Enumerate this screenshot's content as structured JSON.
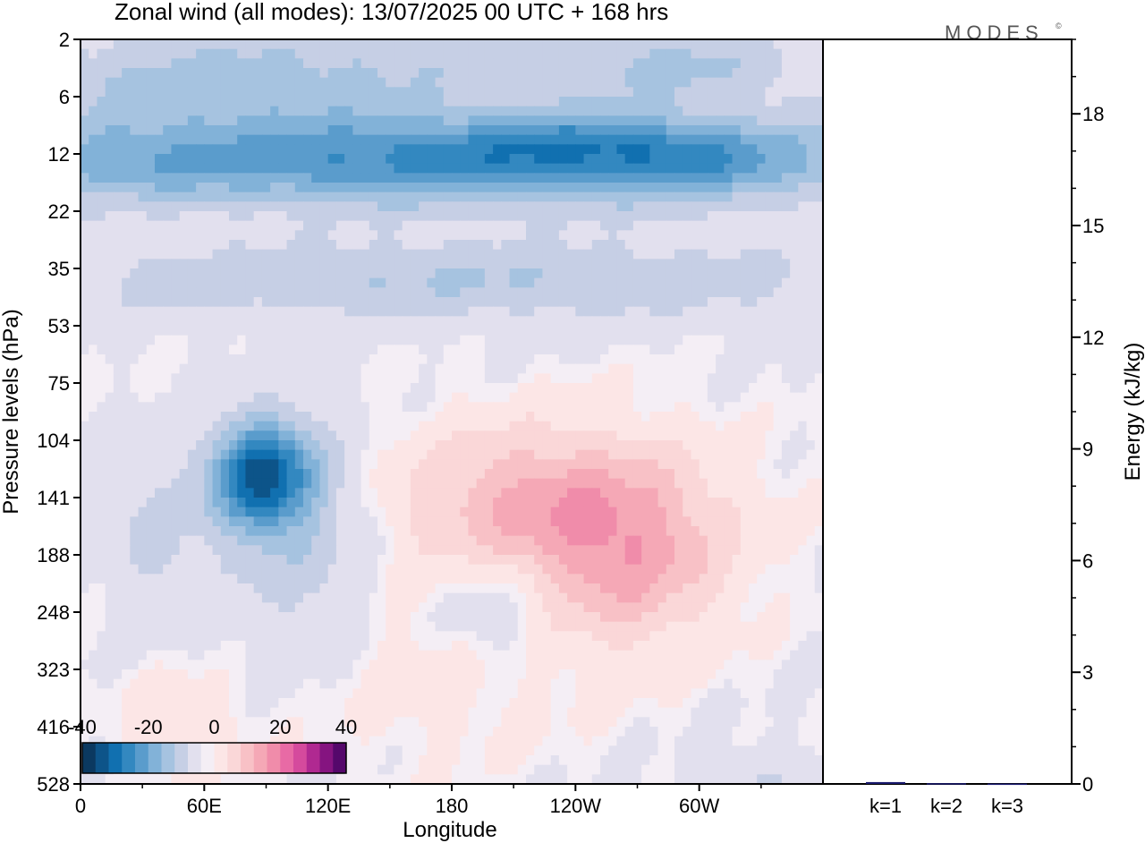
{
  "title": "Zonal wind (all modes):  13/07/2025  00 UTC  + 168 hrs",
  "logo": "MODES",
  "logo_mark": "©",
  "colors": {
    "negative_scale": [
      "#0b3960",
      "#0d5489",
      "#1170b0",
      "#3388c0",
      "#5a9ccc",
      "#82b2d8",
      "#a6c3e0",
      "#c6cfe5",
      "#e2e0ee"
    ],
    "neutral": "#f4eef5",
    "positive_scale": [
      "#fce6e6",
      "#fad7d8",
      "#f8c1c6",
      "#f5a8b6",
      "#f08caa",
      "#e86aa5",
      "#d54a9d",
      "#b02991",
      "#851480",
      "#55086b"
    ],
    "energy_bar": "#1a1a6e"
  },
  "chart_data": [
    {
      "type": "heatmap",
      "xlabel": "Longitude",
      "ylabel": "Pressure levels (hPa)",
      "x_ticks": [
        "0",
        "60E",
        "120E",
        "180",
        "120W",
        "60W"
      ],
      "y_ticks": [
        "2",
        "6",
        "12",
        "22",
        "35",
        "53",
        "75",
        "104",
        "141",
        "188",
        "248",
        "323",
        "416",
        "528"
      ],
      "y_direction": "pressure increases downward",
      "colorbar": {
        "tick_labels": [
          "-40",
          "-20",
          "0",
          "20",
          "40"
        ],
        "range": [
          -40,
          40
        ],
        "placement": "bottom-left inset"
      },
      "field": {
        "x_extent": [
          0,
          360
        ],
        "levels": [
          "2",
          "6",
          "12",
          "22",
          "35",
          "53",
          "75",
          "104",
          "141",
          "188",
          "248",
          "323",
          "416",
          "528"
        ],
        "blobs": [
          {
            "lon": 180,
            "lev": 0.3,
            "sw": 170,
            "sh": 0.9,
            "amp": -6
          },
          {
            "lon": 60,
            "lev": 0.8,
            "sw": 100,
            "sh": 0.8,
            "amp": -9
          },
          {
            "lon": 290,
            "lev": 0.5,
            "sw": 60,
            "sh": 0.6,
            "amp": -7
          },
          {
            "lon": 180,
            "lev": 2.1,
            "sw": 220,
            "sh": 0.8,
            "amp": -26
          },
          {
            "lon": 245,
            "lev": 1.8,
            "sw": 55,
            "sh": 0.5,
            "amp": -8
          },
          {
            "lon": 300,
            "lev": 2.1,
            "sw": 40,
            "sh": 0.6,
            "amp": -6
          },
          {
            "lon": 20,
            "lev": 2.2,
            "sw": 40,
            "sh": 0.6,
            "amp": -4
          },
          {
            "lon": 180,
            "lev": 4.2,
            "sw": 220,
            "sh": 0.7,
            "amp": -10
          },
          {
            "lon": 88,
            "lev": 7.6,
            "sw": 24,
            "sh": 0.9,
            "amp": -34
          },
          {
            "lon": 105,
            "lev": 8.6,
            "sw": 40,
            "sh": 1.8,
            "amp": -9
          },
          {
            "lon": 35,
            "lev": 8.8,
            "sw": 22,
            "sh": 1.3,
            "amp": -6
          },
          {
            "lon": 225,
            "lev": 8.2,
            "sw": 75,
            "sh": 1.4,
            "amp": 15
          },
          {
            "lon": 268,
            "lev": 9.3,
            "sw": 45,
            "sh": 1.5,
            "amp": 10
          },
          {
            "lon": 180,
            "lev": 11.0,
            "sw": 60,
            "sh": 1.5,
            "amp": 4
          },
          {
            "lon": 200,
            "lev": 9.9,
            "sw": 30,
            "sh": 1.2,
            "amp": -7
          },
          {
            "lon": 50,
            "lev": 12.0,
            "sw": 30,
            "sh": 1.0,
            "amp": 4
          },
          {
            "lon": 325,
            "lev": 13.0,
            "sw": 30,
            "sh": 0.6,
            "amp": -5
          }
        ]
      }
    },
    {
      "type": "bar",
      "ylabel": "Energy (kJ/kg)",
      "categories": [
        "k=1",
        "k=2",
        "k=3"
      ],
      "values": [
        0.05,
        0.02,
        0.01
      ],
      "y_ticks": [
        "0",
        "3",
        "6",
        "9",
        "12",
        "15",
        "18"
      ],
      "ylim": [
        0,
        20
      ],
      "y_minor_step": 1
    }
  ]
}
